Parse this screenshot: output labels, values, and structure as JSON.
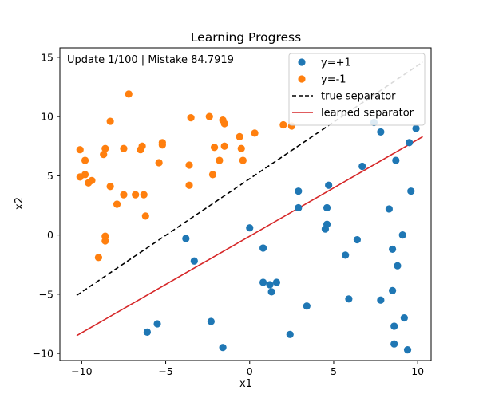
{
  "chart_data": {
    "type": "scatter",
    "title": "Learning Progress",
    "xlabel": "x1",
    "ylabel": "x2",
    "xlim": [
      -11.3,
      10.8
    ],
    "ylim": [
      -10.6,
      15.8
    ],
    "xticks": [
      -10,
      -5,
      0,
      5,
      10
    ],
    "yticks": [
      -10,
      -5,
      0,
      5,
      10,
      15
    ],
    "grid": false,
    "annotation": "Update 1/100 | Mistake 84.7919",
    "legend_position": "top-right",
    "legend": [
      {
        "label": "y=+1",
        "kind": "point",
        "color": "#1f77b4"
      },
      {
        "label": "y=-1",
        "kind": "point",
        "color": "#ff7f0e"
      },
      {
        "label": "true separator",
        "kind": "dashed",
        "color": "#000000"
      },
      {
        "label": "learned separator",
        "kind": "line",
        "color": "#d62728"
      }
    ],
    "series": [
      {
        "name": "y=+1",
        "color": "#1f77b4",
        "points": [
          [
            -6.1,
            -8.2
          ],
          [
            -5.5,
            -7.5
          ],
          [
            -3.8,
            -0.3
          ],
          [
            -3.3,
            -2.2
          ],
          [
            -2.3,
            -7.3
          ],
          [
            -1.6,
            -9.5
          ],
          [
            0.0,
            0.6
          ],
          [
            0.8,
            -1.1
          ],
          [
            0.8,
            -4.0
          ],
          [
            1.2,
            -4.2
          ],
          [
            1.3,
            -4.8
          ],
          [
            1.6,
            -4.0
          ],
          [
            2.4,
            -8.4
          ],
          [
            2.9,
            3.7
          ],
          [
            2.9,
            2.3
          ],
          [
            3.4,
            -6.0
          ],
          [
            4.5,
            0.5
          ],
          [
            4.6,
            0.9
          ],
          [
            4.6,
            2.3
          ],
          [
            4.7,
            4.2
          ],
          [
            5.7,
            -1.7
          ],
          [
            5.9,
            -5.4
          ],
          [
            6.4,
            -0.4
          ],
          [
            6.7,
            5.8
          ],
          [
            7.4,
            9.5
          ],
          [
            7.8,
            8.7
          ],
          [
            7.8,
            -5.5
          ],
          [
            8.3,
            2.2
          ],
          [
            8.5,
            -1.2
          ],
          [
            8.5,
            -4.7
          ],
          [
            8.6,
            -7.7
          ],
          [
            8.6,
            -9.2
          ],
          [
            8.7,
            6.3
          ],
          [
            8.8,
            -2.6
          ],
          [
            9.1,
            -0.0
          ],
          [
            9.2,
            -7.0
          ],
          [
            9.4,
            -9.7
          ],
          [
            9.5,
            7.8
          ],
          [
            9.6,
            3.7
          ],
          [
            9.9,
            9.0
          ]
        ]
      },
      {
        "name": "y=-1",
        "color": "#ff7f0e",
        "points": [
          [
            -10.1,
            7.2
          ],
          [
            -10.1,
            4.9
          ],
          [
            -9.8,
            5.1
          ],
          [
            -9.8,
            6.3
          ],
          [
            -9.6,
            4.4
          ],
          [
            -9.4,
            4.6
          ],
          [
            -9.0,
            -1.9
          ],
          [
            -8.7,
            6.8
          ],
          [
            -8.6,
            7.3
          ],
          [
            -8.6,
            -0.1
          ],
          [
            -8.6,
            -0.5
          ],
          [
            -8.3,
            9.6
          ],
          [
            -8.3,
            4.1
          ],
          [
            -7.9,
            2.6
          ],
          [
            -7.5,
            3.4
          ],
          [
            -7.5,
            7.3
          ],
          [
            -7.2,
            11.9
          ],
          [
            -6.8,
            3.4
          ],
          [
            -6.5,
            7.2
          ],
          [
            -6.4,
            7.5
          ],
          [
            -6.3,
            3.4
          ],
          [
            -6.2,
            1.6
          ],
          [
            -5.4,
            6.1
          ],
          [
            -5.2,
            7.6
          ],
          [
            -5.2,
            7.8
          ],
          [
            -3.6,
            4.2
          ],
          [
            -3.6,
            5.9
          ],
          [
            -3.5,
            9.9
          ],
          [
            -2.4,
            10.0
          ],
          [
            -2.2,
            5.1
          ],
          [
            -2.1,
            7.4
          ],
          [
            -1.8,
            6.3
          ],
          [
            -1.6,
            9.7
          ],
          [
            -1.5,
            9.4
          ],
          [
            -1.5,
            7.5
          ],
          [
            -0.6,
            8.3
          ],
          [
            -0.5,
            7.3
          ],
          [
            -0.4,
            6.3
          ],
          [
            0.3,
            8.6
          ],
          [
            2.0,
            9.3
          ],
          [
            2.5,
            9.2
          ]
        ]
      }
    ],
    "lines": [
      {
        "name": "true separator",
        "color": "#000000",
        "dash": true,
        "x": [
          -10.3,
          10.3
        ],
        "y": [
          -5.1,
          14.6
        ]
      },
      {
        "name": "learned separator",
        "color": "#d62728",
        "dash": false,
        "x": [
          -10.3,
          10.3
        ],
        "y": [
          -8.5,
          8.3
        ]
      }
    ]
  }
}
